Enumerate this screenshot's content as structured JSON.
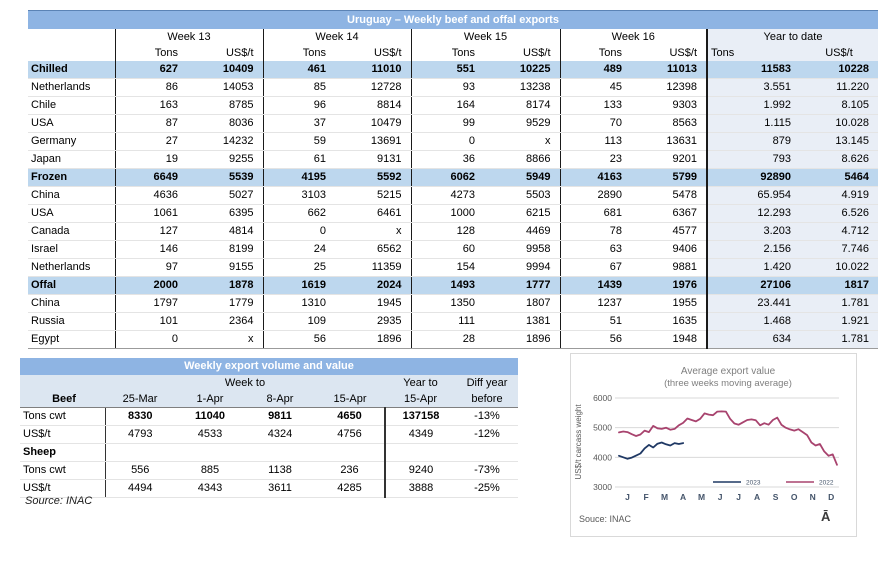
{
  "colors": {
    "band_blue": "#8EB4E3",
    "section_blue": "#BDD7EE",
    "ytd_fill": "#E9EEF6",
    "header_fill": "#DCE6F1",
    "line_2023": "#1F3864",
    "line_2022": "#A8436E"
  },
  "table1": {
    "title": "Uruguay – Weekly beef and offal exports",
    "week_headers": [
      "Week 13",
      "Week 14",
      "Week 15",
      "Week 16"
    ],
    "ytd_header": "Year to date",
    "unit_tons": "Tons",
    "unit_usd": "US$/t",
    "rows": [
      {
        "label": "Chilled",
        "section": true,
        "values": [
          "627",
          "10409",
          "461",
          "11010",
          "551",
          "10225",
          "489",
          "11013",
          "11583",
          "10228"
        ]
      },
      {
        "label": "Netherlands",
        "section": false,
        "values": [
          "86",
          "14053",
          "85",
          "12728",
          "93",
          "13238",
          "45",
          "12398",
          "3.551",
          "11.220"
        ]
      },
      {
        "label": "Chile",
        "section": false,
        "values": [
          "163",
          "8785",
          "96",
          "8814",
          "164",
          "8174",
          "133",
          "9303",
          "1.992",
          "8.105"
        ]
      },
      {
        "label": "USA",
        "section": false,
        "values": [
          "87",
          "8036",
          "37",
          "10479",
          "99",
          "9529",
          "70",
          "8563",
          "1.115",
          "10.028"
        ]
      },
      {
        "label": "Germany",
        "section": false,
        "values": [
          "27",
          "14232",
          "59",
          "13691",
          "0",
          "x",
          "113",
          "13631",
          "879",
          "13.145"
        ]
      },
      {
        "label": "Japan",
        "section": false,
        "values": [
          "19",
          "9255",
          "61",
          "9131",
          "36",
          "8866",
          "23",
          "9201",
          "793",
          "8.626"
        ]
      },
      {
        "label": "Frozen",
        "section": true,
        "values": [
          "6649",
          "5539",
          "4195",
          "5592",
          "6062",
          "5949",
          "4163",
          "5799",
          "92890",
          "5464"
        ]
      },
      {
        "label": "China",
        "section": false,
        "values": [
          "4636",
          "5027",
          "3103",
          "5215",
          "4273",
          "5503",
          "2890",
          "5478",
          "65.954",
          "4.919"
        ]
      },
      {
        "label": "USA",
        "section": false,
        "values": [
          "1061",
          "6395",
          "662",
          "6461",
          "1000",
          "6215",
          "681",
          "6367",
          "12.293",
          "6.526"
        ]
      },
      {
        "label": "Canada",
        "section": false,
        "values": [
          "127",
          "4814",
          "0",
          "x",
          "128",
          "4469",
          "78",
          "4577",
          "3.203",
          "4.712"
        ]
      },
      {
        "label": "Israel",
        "section": false,
        "values": [
          "146",
          "8199",
          "24",
          "6562",
          "60",
          "9958",
          "63",
          "9406",
          "2.156",
          "7.746"
        ]
      },
      {
        "label": "Netherlands",
        "section": false,
        "values": [
          "97",
          "9155",
          "25",
          "11359",
          "154",
          "9994",
          "67",
          "9881",
          "1.420",
          "10.022"
        ]
      },
      {
        "label": "Offal",
        "section": true,
        "values": [
          "2000",
          "1878",
          "1619",
          "2024",
          "1493",
          "1777",
          "1439",
          "1976",
          "27106",
          "1817"
        ]
      },
      {
        "label": "China",
        "section": false,
        "values": [
          "1797",
          "1779",
          "1310",
          "1945",
          "1350",
          "1807",
          "1237",
          "1955",
          "23.441",
          "1.781"
        ]
      },
      {
        "label": "Russia",
        "section": false,
        "values": [
          "101",
          "2364",
          "109",
          "2935",
          "111",
          "1381",
          "51",
          "1635",
          "1.468",
          "1.921"
        ]
      },
      {
        "label": "Egypt",
        "section": false,
        "values": [
          "0",
          "x",
          "56",
          "1896",
          "28",
          "1896",
          "56",
          "1948",
          "634",
          "1.781"
        ]
      }
    ]
  },
  "table2": {
    "title": "Weekly export volume and value",
    "group_week_to": "Week to",
    "group_year_to": "Year to",
    "group_diff_year": "Diff year",
    "col_headers": [
      "Beef",
      "25-Mar",
      "1-Apr",
      "8-Apr",
      "15-Apr",
      "15-Apr",
      "before"
    ],
    "rows": [
      {
        "label": "Tons cwt",
        "section": false,
        "bold_values": true,
        "values": [
          "8330",
          "11040",
          "9811",
          "4650",
          "137158",
          "-13%"
        ]
      },
      {
        "label": "US$/t",
        "section": false,
        "bold_values": false,
        "values": [
          "4793",
          "4533",
          "4324",
          "4756",
          "4349",
          "-12%"
        ]
      },
      {
        "label": "Sheep",
        "section": true,
        "bold_values": false,
        "values": [
          "",
          "",
          "",
          "",
          "",
          ""
        ]
      },
      {
        "label": "Tons cwt",
        "section": false,
        "bold_values": false,
        "values": [
          "556",
          "885",
          "1138",
          "236",
          "9240",
          "-73%"
        ]
      },
      {
        "label": "US$/t",
        "section": false,
        "bold_values": false,
        "values": [
          "4494",
          "4343",
          "3611",
          "4285",
          "3888",
          "-25%"
        ]
      }
    ],
    "source": "Source: INAC"
  },
  "chart_data": {
    "type": "line",
    "title": "Average export value",
    "subtitle": "(three weeks moving average)",
    "ylabel": "US$/t carcass weight",
    "ylim": [
      3000,
      6000
    ],
    "yticks": [
      3000,
      4000,
      5000,
      6000
    ],
    "xticks": [
      "J",
      "F",
      "M",
      "A",
      "M",
      "J",
      "J",
      "A",
      "S",
      "O",
      "N",
      "D"
    ],
    "grid": true,
    "legend_position": "bottom-center-inside",
    "weeks_per_year": 52,
    "series": [
      {
        "name": "2023",
        "color": "#1F3864",
        "values": [
          4050,
          4000,
          3950,
          3990,
          4060,
          4130,
          4300,
          4420,
          4330,
          4460,
          4500,
          4440,
          4400,
          4480,
          4450,
          4480
        ]
      },
      {
        "name": "2022",
        "color": "#A8436E",
        "values": [
          4840,
          4870,
          4850,
          4780,
          4720,
          4770,
          4900,
          4850,
          5060,
          4980,
          4960,
          5000,
          4930,
          4960,
          5080,
          5160,
          5310,
          5260,
          5210,
          5300,
          5480,
          5440,
          5420,
          5540,
          5550,
          5540,
          5300,
          5140,
          5100,
          5180,
          5260,
          5280,
          5250,
          5080,
          5150,
          5100,
          5260,
          5340,
          5100,
          5000,
          4940,
          4900,
          4950,
          4850,
          4750,
          4500,
          4400,
          4450,
          4200,
          4050,
          4100,
          3750
        ]
      }
    ],
    "source": "Souce: INAC",
    "corner_glyph": "Ā"
  }
}
